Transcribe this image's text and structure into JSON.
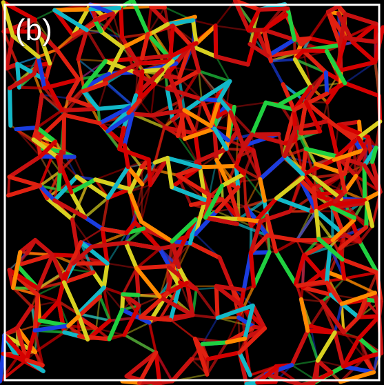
{
  "panel_label": "(b)",
  "colors": {
    "background": "#000000",
    "frame": "#ffffff",
    "bond_palette": [
      "#d40000",
      "#c81010",
      "#e02010",
      "#1a3de0",
      "#12b8c8",
      "#20d040",
      "#d8d020",
      "#ff8a00"
    ]
  }
}
